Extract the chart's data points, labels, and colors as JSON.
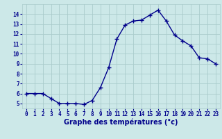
{
  "x": [
    0,
    1,
    2,
    3,
    4,
    5,
    6,
    7,
    8,
    9,
    10,
    11,
    12,
    13,
    14,
    15,
    16,
    17,
    18,
    19,
    20,
    21,
    22,
    23
  ],
  "y": [
    6.0,
    6.0,
    6.0,
    5.5,
    5.0,
    5.0,
    5.0,
    4.9,
    5.3,
    6.6,
    8.6,
    11.5,
    12.9,
    13.3,
    13.4,
    13.9,
    14.4,
    13.3,
    11.9,
    11.3,
    10.8,
    9.6,
    9.5,
    9.0
  ],
  "line_color": "#00008B",
  "marker": "+",
  "marker_color": "#00008B",
  "bg_color": "#cce8e8",
  "grid_color": "#aacccc",
  "xlabel": "Graphe des températures (°c)",
  "xlabel_color": "#00008B",
  "tick_color": "#00008B",
  "ylim": [
    4.5,
    15.0
  ],
  "xlim": [
    -0.5,
    23.5
  ],
  "yticks": [
    5,
    6,
    7,
    8,
    9,
    10,
    11,
    12,
    13,
    14
  ],
  "xticks": [
    0,
    1,
    2,
    3,
    4,
    5,
    6,
    7,
    8,
    9,
    10,
    11,
    12,
    13,
    14,
    15,
    16,
    17,
    18,
    19,
    20,
    21,
    22,
    23
  ],
  "linewidth": 1.0,
  "markersize": 4,
  "tick_fontsize": 5.5,
  "xlabel_fontsize": 7.0
}
